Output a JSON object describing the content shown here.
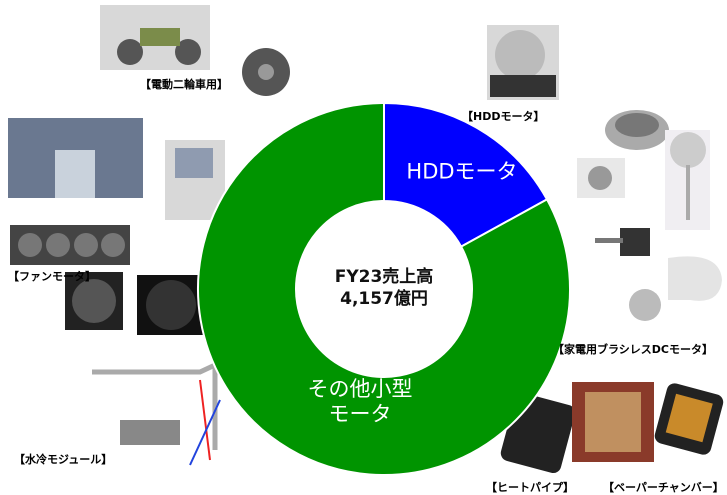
{
  "chart_data": {
    "type": "pie",
    "categories": [
      "HDDモータ",
      "その他小型モータ"
    ],
    "values": [
      17,
      83
    ],
    "colors": [
      "#0000ff",
      "#009400"
    ],
    "center_text": [
      "FY23売上高",
      "4,157億円"
    ]
  },
  "annotations": [
    "【電動二輪車用】",
    "【HDDモータ】",
    "【家電用ブラシレスDCモータ】",
    "【ファンモータ】",
    "【水冷モジュール】",
    "【ヒートパイプ】",
    "【ベーパーチャンバー】"
  ]
}
